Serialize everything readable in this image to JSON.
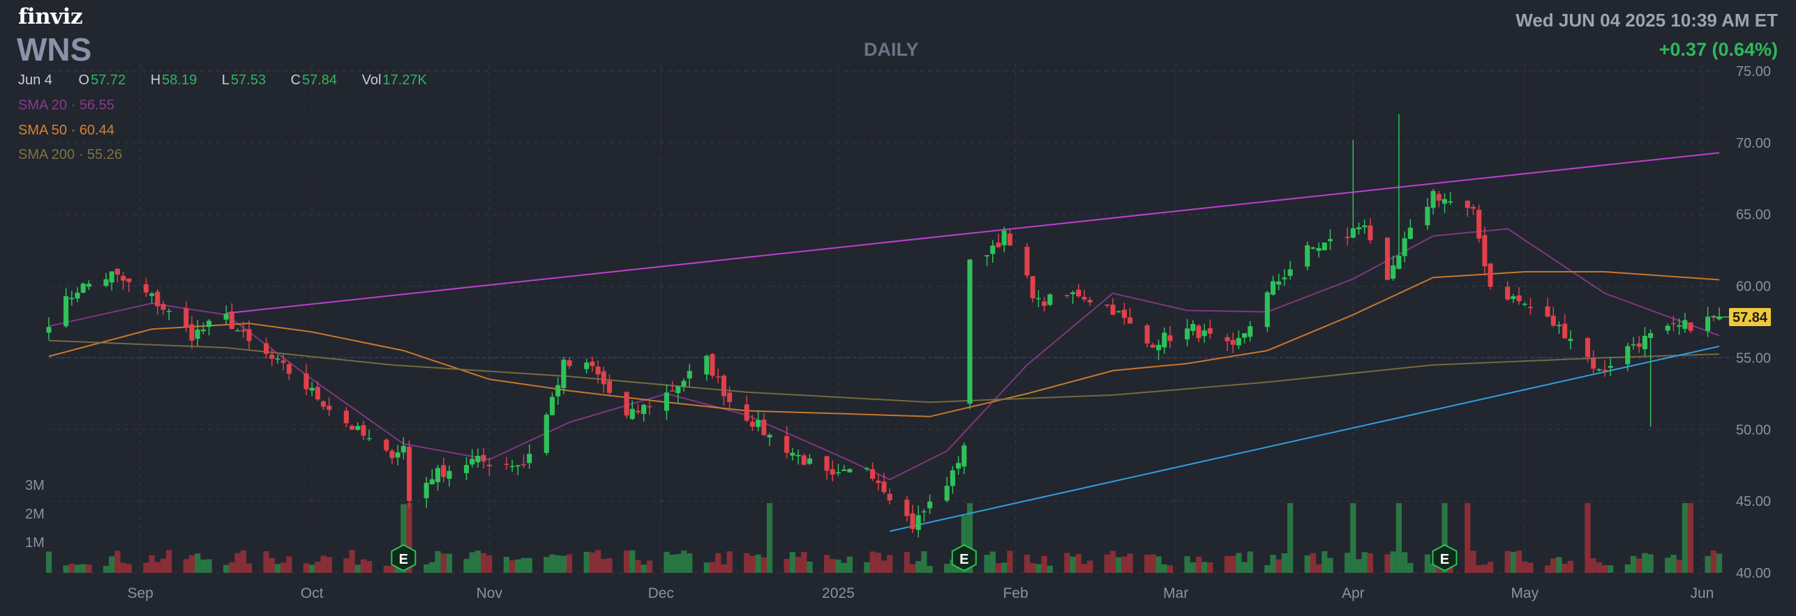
{
  "header": {
    "brand": "finviz",
    "ticker": "WNS",
    "period": "DAILY",
    "datetime": "Wed JUN 04 2025 10:39 AM ET",
    "change": "+0.37 (0.64%)"
  },
  "ohlc": {
    "date": "Jun 4",
    "open_label": "O",
    "open": "57.72",
    "high_label": "H",
    "high": "58.19",
    "low_label": "L",
    "low": "57.53",
    "close_label": "C",
    "close": "57.84",
    "vol_label": "Vol",
    "vol": "17.27K"
  },
  "indicators": {
    "sma20": "SMA 20 · 56.55",
    "sma50": "SMA 50 · 60.44",
    "sma200": "SMA 200 · 55.26"
  },
  "colors": {
    "up": "#2ec25a",
    "down": "#e0414a",
    "sma20": "#8a3a8a",
    "sma50": "#d9822b",
    "sma200": "#7d7440",
    "upper_trendline": "#c23fd0",
    "lower_trendline": "#2f9fe0",
    "last_price_bg": "#f0c93a"
  },
  "chart_data": {
    "type": "candlestick",
    "ylim": [
      40,
      75
    ],
    "y_ticks": [
      "75.00",
      "70.00",
      "65.00",
      "60.00",
      "55.00",
      "50.00",
      "45.00",
      "40.00"
    ],
    "x_ticks": [
      "Sep",
      "Oct",
      "Nov",
      "Dec",
      "2025",
      "Feb",
      "Mar",
      "Apr",
      "May",
      "Jun"
    ],
    "volume_ticks": [
      "3M",
      "2M",
      "1M"
    ],
    "last_price": "57.84",
    "earnings_marker_label": "E",
    "earnings_dates": [
      "2024-10-17",
      "2025-01-23",
      "2025-04-17"
    ],
    "series": [
      {
        "name": "SMA 20",
        "points": [
          [
            "2024-08-16",
            57.2
          ],
          [
            "2024-09-03",
            58.8
          ],
          [
            "2024-09-16",
            58.0
          ],
          [
            "2024-10-01",
            53.5
          ],
          [
            "2024-10-17",
            49.0
          ],
          [
            "2024-11-01",
            47.9
          ],
          [
            "2024-11-15",
            50.5
          ],
          [
            "2024-12-02",
            52.5
          ],
          [
            "2024-12-16",
            51.0
          ],
          [
            "2025-01-02",
            48.0
          ],
          [
            "2025-01-10",
            46.5
          ],
          [
            "2025-01-20",
            48.5
          ],
          [
            "2025-02-03",
            54.5
          ],
          [
            "2025-02-18",
            59.5
          ],
          [
            "2025-03-03",
            58.3
          ],
          [
            "2025-03-17",
            58.2
          ],
          [
            "2025-04-01",
            60.5
          ],
          [
            "2025-04-15",
            63.5
          ],
          [
            "2025-04-28",
            64.0
          ],
          [
            "2025-05-15",
            59.5
          ],
          [
            "2025-06-04",
            56.55
          ]
        ]
      },
      {
        "name": "SMA 50",
        "points": [
          [
            "2024-08-16",
            55.1
          ],
          [
            "2024-09-03",
            57.0
          ],
          [
            "2024-09-20",
            57.4
          ],
          [
            "2024-10-01",
            56.8
          ],
          [
            "2024-10-17",
            55.5
          ],
          [
            "2024-11-01",
            53.5
          ],
          [
            "2024-11-15",
            52.7
          ],
          [
            "2024-12-02",
            51.9
          ],
          [
            "2024-12-16",
            51.3
          ],
          [
            "2025-01-02",
            51.1
          ],
          [
            "2025-01-17",
            50.9
          ],
          [
            "2025-02-03",
            52.5
          ],
          [
            "2025-02-18",
            54.1
          ],
          [
            "2025-03-03",
            54.6
          ],
          [
            "2025-03-17",
            55.5
          ],
          [
            "2025-04-01",
            58.0
          ],
          [
            "2025-04-15",
            60.6
          ],
          [
            "2025-05-01",
            61.0
          ],
          [
            "2025-05-15",
            61.0
          ],
          [
            "2025-06-04",
            60.44
          ]
        ]
      },
      {
        "name": "SMA 200",
        "points": [
          [
            "2024-08-16",
            56.2
          ],
          [
            "2024-09-16",
            55.7
          ],
          [
            "2024-10-15",
            54.5
          ],
          [
            "2024-11-15",
            53.7
          ],
          [
            "2024-12-16",
            52.6
          ],
          [
            "2025-01-17",
            51.9
          ],
          [
            "2025-02-18",
            52.4
          ],
          [
            "2025-03-17",
            53.3
          ],
          [
            "2025-04-15",
            54.5
          ],
          [
            "2025-05-15",
            55.0
          ],
          [
            "2025-06-04",
            55.26
          ]
        ]
      }
    ],
    "trendlines": [
      {
        "points": [
          [
            "2024-09-16",
            58.1
          ],
          [
            "2025-06-04",
            69.3
          ]
        ]
      },
      {
        "points": [
          [
            "2025-01-10",
            42.9
          ],
          [
            "2025-06-04",
            55.8
          ]
        ]
      }
    ],
    "volume_bars": 193
  }
}
